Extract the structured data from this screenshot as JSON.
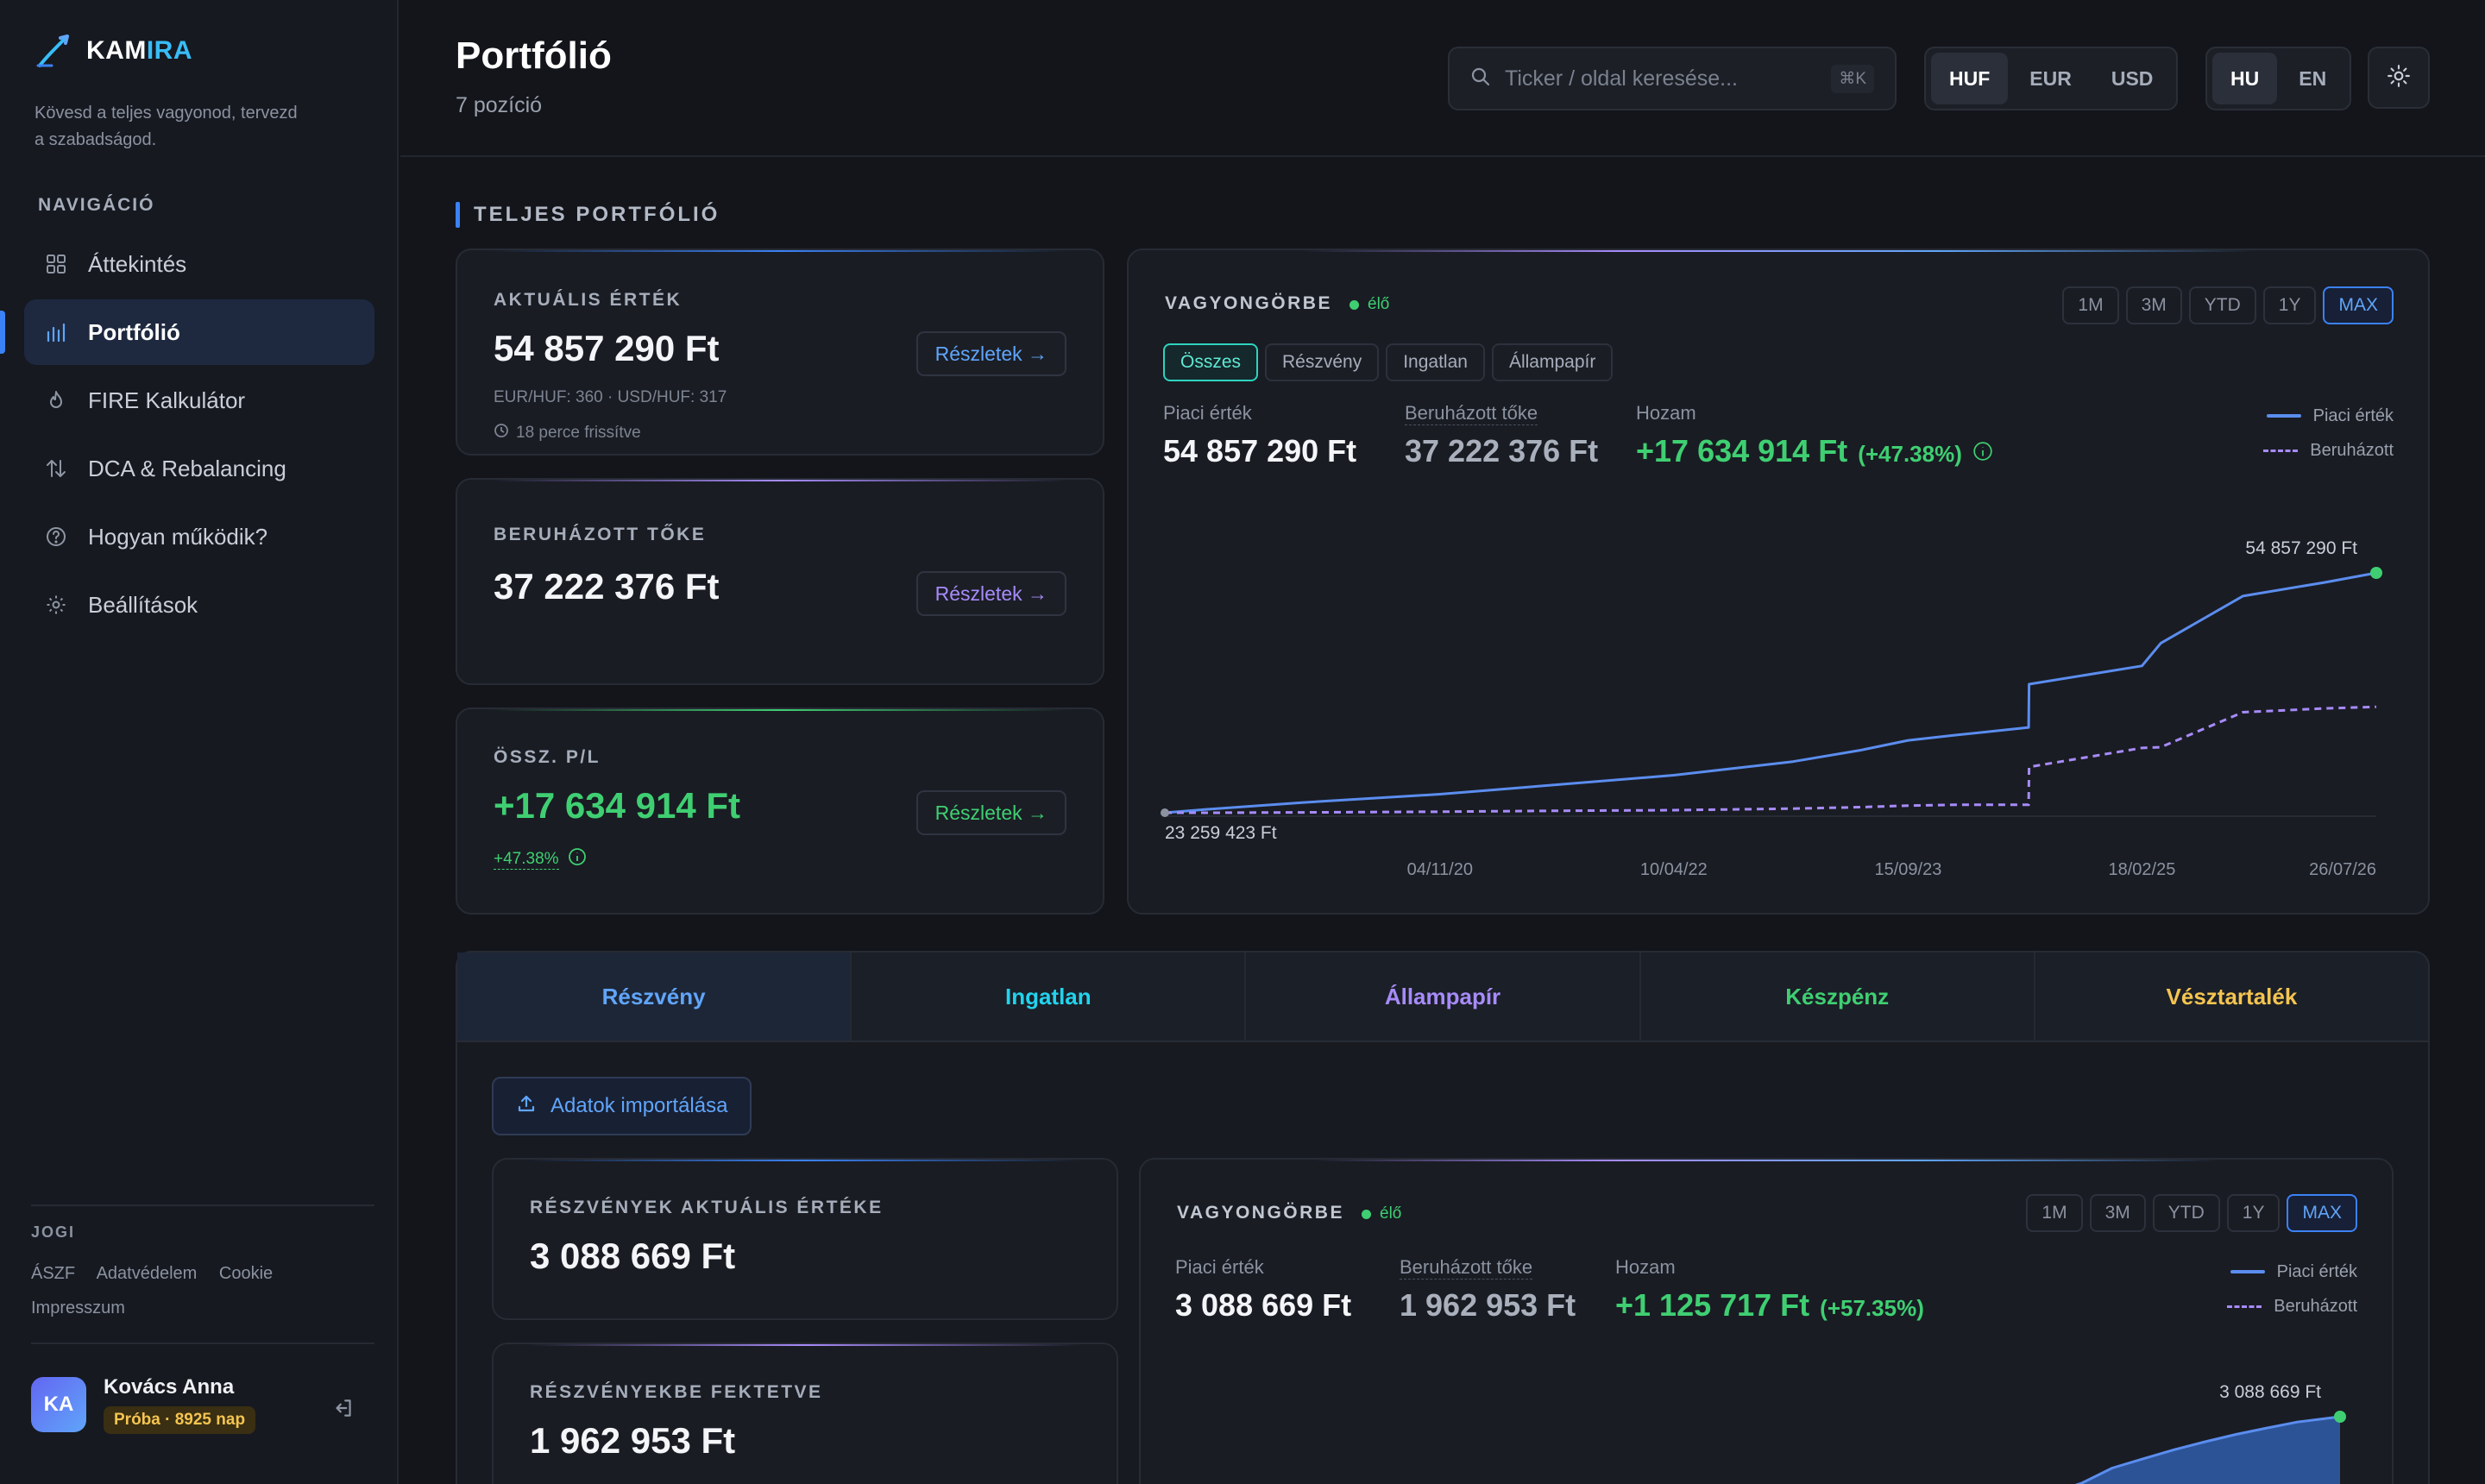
{
  "brand": {
    "name_a": "KAM",
    "name_b": "IRA",
    "tagline": "Kövesd a teljes vagyonod, tervezd a szabadságod."
  },
  "sidebar": {
    "nav_title": "NAVIGÁCIÓ",
    "items": [
      {
        "label": "Áttekintés",
        "icon": "grid-icon"
      },
      {
        "label": "Portfólió",
        "icon": "bar-chart-icon",
        "active": true
      },
      {
        "label": "FIRE Kalkulátor",
        "icon": "flame-icon"
      },
      {
        "label": "DCA & Rebalancing",
        "icon": "swap-icon"
      },
      {
        "label": "Hogyan működik?",
        "icon": "help-icon"
      },
      {
        "label": "Beállítások",
        "icon": "gear-icon"
      }
    ],
    "legal_title": "JOGI",
    "legal_links": [
      "ÁSZF",
      "Adatvédelem",
      "Cookie",
      "Impresszum"
    ],
    "user": {
      "initials": "KA",
      "name": "Kovács Anna",
      "badge": "Próba · 8925 nap"
    }
  },
  "header": {
    "title": "Portfólió",
    "subtitle": "7 pozíció",
    "search_placeholder": "Ticker / oldal keresése...",
    "search_shortcut": "⌘K",
    "currencies": [
      "HUF",
      "EUR",
      "USD"
    ],
    "active_currency": "HUF",
    "languages": [
      "HU",
      "EN"
    ],
    "active_language": "HU"
  },
  "section_title": "TELJES PORTFÓLIÓ",
  "cards": {
    "current": {
      "label": "AKTUÁLIS ÉRTÉK",
      "value": "54 857 290 Ft",
      "rates": "EUR/HUF: 360 · USD/HUF: 317",
      "updated": "18 perce frissítve",
      "button": "Részletek →"
    },
    "invested": {
      "label": "BERUHÁZOTT TŐKE",
      "value": "37 222 376 Ft",
      "button": "Részletek →"
    },
    "pnl": {
      "label": "ÖSSZ. P/L",
      "value": "+17 634 914 Ft",
      "pct": "+47.38%",
      "button": "Részletek →"
    }
  },
  "wealth_chart": {
    "title": "VAGYONGÖRBE",
    "live": "élő",
    "ranges": [
      "1M",
      "3M",
      "YTD",
      "1Y",
      "MAX"
    ],
    "active_range": "MAX",
    "filters": [
      "Összes",
      "Részvény",
      "Ingatlan",
      "Állampapír"
    ],
    "active_filter": "Összes",
    "market_label": "Piaci érték",
    "market_value": "54 857 290 Ft",
    "invested_label": "Beruházott tőke",
    "invested_value": "37 222 376 Ft",
    "yield_label": "Hozam",
    "yield_value": "+17 634 914 Ft",
    "yield_pct": "(+47.38%)",
    "legend_market": "Piaci érték",
    "legend_invested": "Beruházott",
    "end_label": "54 857 290 Ft",
    "start_label": "23 259 423 Ft"
  },
  "chart_data": [
    {
      "type": "line",
      "x": [
        "2019-03-01",
        "2019-06-01",
        "2020-01-01",
        "2020-11-04",
        "2021-06-01",
        "2022-04-10",
        "2023-01-01",
        "2023-06-01",
        "2023-09-15",
        "2024-01-01",
        "2024-06-10",
        "2024-06-11",
        "2025-02-18",
        "2025-04-01",
        "2025-10-01",
        "2026-04-01",
        "2026-07-26"
      ],
      "x_tick_labels": [
        "04/11/20",
        "10/04/22",
        "15/09/23",
        "18/02/25",
        "26/07/26"
      ],
      "series": [
        {
          "name": "Piaci érték",
          "style": "solid",
          "color": "#5b8def",
          "values": [
            23259423,
            23700000,
            24600000,
            25700000,
            26700000,
            28200000,
            30000000,
            31500000,
            32800000,
            33500000,
            34500000,
            40200000,
            42600000,
            45600000,
            51800000,
            53600000,
            54857290
          ]
        },
        {
          "name": "Beruházott",
          "style": "dashed",
          "color": "#a78bfa",
          "values": [
            23259423,
            23259423,
            23300000,
            23400000,
            23500000,
            23600000,
            23800000,
            24000000,
            24200000,
            24300000,
            24300000,
            29300000,
            31800000,
            31900000,
            36500000,
            37000000,
            37222376
          ]
        }
      ]
    },
    {
      "type": "line",
      "x": [
        "2024-11-01",
        "2025-01-01",
        "2025-03-01",
        "2025-05-01",
        "2025-07-01",
        "2025-09-01",
        "2025-11-01",
        "2026-01-01",
        "2026-03-01",
        "2026-05-01",
        "2026-07-26"
      ],
      "series": [
        {
          "name": "Piaci érték",
          "style": "solid",
          "color": "#5b8def",
          "values": [
            1650000,
            1850000,
            2000000,
            2250000,
            2400000,
            2550000,
            2680000,
            2800000,
            2900000,
            3000000,
            3088669
          ]
        }
      ]
    }
  ],
  "tabs": [
    {
      "label": "Részvény",
      "color": "#60a5fa",
      "active": true
    },
    {
      "label": "Ingatlan",
      "color": "#22d3ee"
    },
    {
      "label": "Állampapír",
      "color": "#a78bfa"
    },
    {
      "label": "Készpénz",
      "color": "#3fcf72"
    },
    {
      "label": "Vésztartalék",
      "color": "#f5c451"
    }
  ],
  "stocks": {
    "import_button": "Adatok importálása",
    "current_label": "RÉSZVÉNYEK AKTUÁLIS ÉRTÉKE",
    "current_value": "3 088 669 Ft",
    "invested_label": "RÉSZVÉNYEKBE FEKTETVE",
    "invested_value": "1 962 953 Ft",
    "chart": {
      "title": "VAGYONGÖRBE",
      "live": "élő",
      "ranges": [
        "1M",
        "3M",
        "YTD",
        "1Y",
        "MAX"
      ],
      "active_range": "MAX",
      "market_label": "Piaci érték",
      "market_value": "3 088 669 Ft",
      "invested_label": "Beruházott tőke",
      "invested_value": "1 962 953 Ft",
      "yield_label": "Hozam",
      "yield_value": "+1 125 717 Ft",
      "yield_pct": "(+57.35%)",
      "legend_market": "Piaci érték",
      "legend_invested": "Beruházott",
      "end_label": "3 088 669 Ft"
    }
  }
}
